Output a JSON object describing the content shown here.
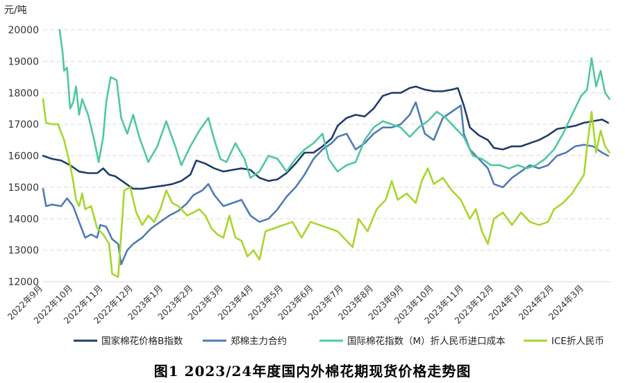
{
  "ylabel": "元/吨",
  "caption": "图1  2023/24年度国内外棉花期现货价格走势图",
  "chart_data": {
    "type": "line",
    "title": "图1  2023/24年度国内外棉花期现货价格走势图",
    "ylabel": "元/吨",
    "xlabel": "",
    "ylim": [
      12000,
      20000
    ],
    "yticks": [
      12000,
      13000,
      14000,
      15000,
      16000,
      17000,
      18000,
      19000,
      20000
    ],
    "grid": "horizontal dashed",
    "legend_position": "bottom",
    "x_tick_labels": [
      "2022年9月",
      "2022年10月",
      "2022年11月",
      "2022年12月",
      "2023年1月",
      "2023年2月",
      "2023年3月",
      "2023年4月",
      "2023年5月",
      "2023年6月",
      "2023年7月",
      "2023年8月",
      "2023年9月",
      "2023年10月",
      "2023年11月",
      "2023年12月",
      "2024年1月",
      "2024年2月",
      "2024年3月"
    ],
    "x_range_months": [
      0,
      18.9
    ],
    "series": [
      {
        "name": "国家棉花价格B指数",
        "color": "#1f3d6b",
        "points": [
          [
            0,
            16000
          ],
          [
            0.3,
            15900
          ],
          [
            0.6,
            15850
          ],
          [
            0.9,
            15700
          ],
          [
            1.2,
            15500
          ],
          [
            1.5,
            15450
          ],
          [
            1.8,
            15450
          ],
          [
            2.0,
            15600
          ],
          [
            2.2,
            15400
          ],
          [
            2.4,
            15350
          ],
          [
            2.7,
            15150
          ],
          [
            3.0,
            14950
          ],
          [
            3.3,
            14950
          ],
          [
            3.6,
            15000
          ],
          [
            4.0,
            15050
          ],
          [
            4.3,
            15100
          ],
          [
            4.6,
            15200
          ],
          [
            4.9,
            15400
          ],
          [
            5.1,
            15850
          ],
          [
            5.4,
            15750
          ],
          [
            5.7,
            15600
          ],
          [
            6.0,
            15500
          ],
          [
            6.3,
            15550
          ],
          [
            6.6,
            15600
          ],
          [
            6.9,
            15550
          ],
          [
            7.2,
            15300
          ],
          [
            7.5,
            15200
          ],
          [
            7.8,
            15250
          ],
          [
            8.1,
            15450
          ],
          [
            8.4,
            15750
          ],
          [
            8.7,
            16100
          ],
          [
            9.0,
            16100
          ],
          [
            9.3,
            16300
          ],
          [
            9.6,
            16550
          ],
          [
            9.8,
            16950
          ],
          [
            10.1,
            17200
          ],
          [
            10.4,
            17300
          ],
          [
            10.7,
            17250
          ],
          [
            11.0,
            17500
          ],
          [
            11.3,
            17900
          ],
          [
            11.6,
            18000
          ],
          [
            11.9,
            18000
          ],
          [
            12.2,
            18150
          ],
          [
            12.4,
            18200
          ],
          [
            12.7,
            18100
          ],
          [
            13.0,
            18050
          ],
          [
            13.3,
            18050
          ],
          [
            13.6,
            18100
          ],
          [
            13.8,
            18150
          ],
          [
            14.0,
            17600
          ],
          [
            14.2,
            16900
          ],
          [
            14.5,
            16650
          ],
          [
            14.8,
            16500
          ],
          [
            15.0,
            16250
          ],
          [
            15.3,
            16200
          ],
          [
            15.6,
            16300
          ],
          [
            15.9,
            16300
          ],
          [
            16.2,
            16400
          ],
          [
            16.5,
            16500
          ],
          [
            16.8,
            16650
          ],
          [
            17.1,
            16850
          ],
          [
            17.4,
            16900
          ],
          [
            17.7,
            16950
          ],
          [
            18.0,
            17050
          ],
          [
            18.3,
            17100
          ],
          [
            18.6,
            17150
          ],
          [
            18.8,
            17050
          ]
        ]
      },
      {
        "name": "郑棉主力合约",
        "color": "#4e7bb5",
        "points": [
          [
            0,
            14950
          ],
          [
            0.1,
            14400
          ],
          [
            0.3,
            14450
          ],
          [
            0.6,
            14400
          ],
          [
            0.8,
            14650
          ],
          [
            1.0,
            14400
          ],
          [
            1.2,
            13900
          ],
          [
            1.4,
            13400
          ],
          [
            1.6,
            13500
          ],
          [
            1.8,
            13400
          ],
          [
            1.9,
            13800
          ],
          [
            2.1,
            13750
          ],
          [
            2.3,
            13350
          ],
          [
            2.5,
            13200
          ],
          [
            2.6,
            12550
          ],
          [
            2.8,
            13000
          ],
          [
            3.0,
            13200
          ],
          [
            3.3,
            13400
          ],
          [
            3.6,
            13700
          ],
          [
            3.9,
            13900
          ],
          [
            4.2,
            14100
          ],
          [
            4.5,
            14250
          ],
          [
            4.8,
            14500
          ],
          [
            5.0,
            14750
          ],
          [
            5.3,
            14900
          ],
          [
            5.5,
            15100
          ],
          [
            5.7,
            14750
          ],
          [
            6.0,
            14400
          ],
          [
            6.3,
            14500
          ],
          [
            6.6,
            14600
          ],
          [
            6.9,
            14100
          ],
          [
            7.2,
            13900
          ],
          [
            7.5,
            14000
          ],
          [
            7.8,
            14300
          ],
          [
            8.1,
            14700
          ],
          [
            8.4,
            15000
          ],
          [
            8.7,
            15400
          ],
          [
            9.0,
            15900
          ],
          [
            9.3,
            16200
          ],
          [
            9.6,
            16400
          ],
          [
            9.8,
            16600
          ],
          [
            10.1,
            16700
          ],
          [
            10.4,
            16200
          ],
          [
            10.7,
            16400
          ],
          [
            11.0,
            16700
          ],
          [
            11.3,
            16900
          ],
          [
            11.6,
            16900
          ],
          [
            11.9,
            17000
          ],
          [
            12.2,
            17300
          ],
          [
            12.4,
            17700
          ],
          [
            12.7,
            16700
          ],
          [
            13.0,
            16500
          ],
          [
            13.3,
            17200
          ],
          [
            13.6,
            17400
          ],
          [
            13.9,
            17600
          ],
          [
            14.0,
            16700
          ],
          [
            14.2,
            16200
          ],
          [
            14.5,
            15900
          ],
          [
            14.8,
            15600
          ],
          [
            15.0,
            15100
          ],
          [
            15.3,
            15000
          ],
          [
            15.6,
            15300
          ],
          [
            15.9,
            15500
          ],
          [
            16.2,
            15700
          ],
          [
            16.5,
            15600
          ],
          [
            16.8,
            15700
          ],
          [
            17.1,
            16000
          ],
          [
            17.4,
            16100
          ],
          [
            17.7,
            16300
          ],
          [
            18.0,
            16350
          ],
          [
            18.3,
            16300
          ],
          [
            18.6,
            16100
          ],
          [
            18.8,
            16000
          ]
        ]
      },
      {
        "name": "国际棉花指数（M）折人民币进口成本",
        "color": "#4fc7a0",
        "points": [
          [
            0.55,
            20000
          ],
          [
            0.65,
            19300
          ],
          [
            0.7,
            18700
          ],
          [
            0.8,
            18800
          ],
          [
            0.9,
            17500
          ],
          [
            1.0,
            17700
          ],
          [
            1.1,
            18200
          ],
          [
            1.2,
            17300
          ],
          [
            1.3,
            17800
          ],
          [
            1.5,
            17300
          ],
          [
            1.7,
            16500
          ],
          [
            1.85,
            15800
          ],
          [
            2.0,
            16600
          ],
          [
            2.1,
            17700
          ],
          [
            2.25,
            18500
          ],
          [
            2.45,
            18400
          ],
          [
            2.6,
            17200
          ],
          [
            2.8,
            16700
          ],
          [
            3.0,
            17300
          ],
          [
            3.2,
            16600
          ],
          [
            3.5,
            15800
          ],
          [
            3.8,
            16300
          ],
          [
            4.1,
            17100
          ],
          [
            4.4,
            16300
          ],
          [
            4.6,
            15700
          ],
          [
            4.9,
            16300
          ],
          [
            5.2,
            16800
          ],
          [
            5.5,
            17200
          ],
          [
            5.7,
            16500
          ],
          [
            5.9,
            15900
          ],
          [
            6.1,
            15800
          ],
          [
            6.4,
            16400
          ],
          [
            6.7,
            15900
          ],
          [
            6.9,
            15300
          ],
          [
            7.2,
            15500
          ],
          [
            7.5,
            16000
          ],
          [
            7.8,
            15900
          ],
          [
            8.1,
            15500
          ],
          [
            8.4,
            15900
          ],
          [
            8.7,
            16200
          ],
          [
            9.0,
            16400
          ],
          [
            9.3,
            16700
          ],
          [
            9.5,
            15900
          ],
          [
            9.8,
            15500
          ],
          [
            10.1,
            15700
          ],
          [
            10.4,
            15800
          ],
          [
            10.7,
            16500
          ],
          [
            11.0,
            16900
          ],
          [
            11.3,
            17100
          ],
          [
            11.6,
            17000
          ],
          [
            11.9,
            16900
          ],
          [
            12.2,
            16600
          ],
          [
            12.5,
            16900
          ],
          [
            12.8,
            17100
          ],
          [
            13.1,
            17400
          ],
          [
            13.4,
            17200
          ],
          [
            13.7,
            16900
          ],
          [
            14.0,
            16600
          ],
          [
            14.3,
            16000
          ],
          [
            14.6,
            15900
          ],
          [
            14.9,
            15700
          ],
          [
            15.2,
            15700
          ],
          [
            15.5,
            15600
          ],
          [
            15.8,
            15700
          ],
          [
            16.1,
            15600
          ],
          [
            16.4,
            15700
          ],
          [
            16.7,
            15900
          ],
          [
            17.0,
            16200
          ],
          [
            17.3,
            16700
          ],
          [
            17.6,
            17300
          ],
          [
            17.9,
            17900
          ],
          [
            18.1,
            18100
          ],
          [
            18.25,
            19100
          ],
          [
            18.4,
            18200
          ],
          [
            18.55,
            18700
          ],
          [
            18.7,
            18000
          ],
          [
            18.85,
            17800
          ]
        ]
      },
      {
        "name": "ICE折人民币",
        "color": "#a8d62a",
        "points": [
          [
            0,
            17800
          ],
          [
            0.1,
            17050
          ],
          [
            0.3,
            17000
          ],
          [
            0.5,
            17000
          ],
          [
            0.7,
            16500
          ],
          [
            0.9,
            15700
          ],
          [
            1.0,
            15200
          ],
          [
            1.1,
            14600
          ],
          [
            1.2,
            14400
          ],
          [
            1.3,
            14800
          ],
          [
            1.4,
            14300
          ],
          [
            1.6,
            14400
          ],
          [
            1.8,
            13700
          ],
          [
            2.0,
            13500
          ],
          [
            2.2,
            13200
          ],
          [
            2.3,
            12250
          ],
          [
            2.5,
            12150
          ],
          [
            2.7,
            14900
          ],
          [
            2.9,
            15000
          ],
          [
            3.1,
            14200
          ],
          [
            3.3,
            13800
          ],
          [
            3.5,
            14100
          ],
          [
            3.7,
            13900
          ],
          [
            3.9,
            14300
          ],
          [
            4.1,
            14900
          ],
          [
            4.3,
            14500
          ],
          [
            4.5,
            14400
          ],
          [
            4.8,
            14100
          ],
          [
            5.0,
            14200
          ],
          [
            5.2,
            14300
          ],
          [
            5.4,
            14100
          ],
          [
            5.6,
            13700
          ],
          [
            5.8,
            13500
          ],
          [
            6.0,
            13400
          ],
          [
            6.2,
            14100
          ],
          [
            6.4,
            13400
          ],
          [
            6.6,
            13300
          ],
          [
            6.8,
            12800
          ],
          [
            7.0,
            13000
          ],
          [
            7.2,
            12700
          ],
          [
            7.4,
            13600
          ],
          [
            7.7,
            13700
          ],
          [
            8.0,
            13800
          ],
          [
            8.3,
            13900
          ],
          [
            8.6,
            13400
          ],
          [
            8.9,
            13900
          ],
          [
            9.2,
            13800
          ],
          [
            9.5,
            13700
          ],
          [
            9.8,
            13600
          ],
          [
            10.1,
            13300
          ],
          [
            10.3,
            13100
          ],
          [
            10.5,
            14000
          ],
          [
            10.8,
            13600
          ],
          [
            11.1,
            14300
          ],
          [
            11.4,
            14600
          ],
          [
            11.6,
            15200
          ],
          [
            11.8,
            14600
          ],
          [
            12.1,
            14800
          ],
          [
            12.4,
            14500
          ],
          [
            12.6,
            15200
          ],
          [
            12.8,
            15600
          ],
          [
            13.0,
            15100
          ],
          [
            13.3,
            15300
          ],
          [
            13.6,
            14900
          ],
          [
            13.9,
            14600
          ],
          [
            14.2,
            14000
          ],
          [
            14.4,
            14300
          ],
          [
            14.6,
            13600
          ],
          [
            14.8,
            13200
          ],
          [
            15.0,
            14000
          ],
          [
            15.3,
            14200
          ],
          [
            15.6,
            13800
          ],
          [
            15.9,
            14200
          ],
          [
            16.2,
            13900
          ],
          [
            16.5,
            13800
          ],
          [
            16.8,
            13900
          ],
          [
            17.0,
            14300
          ],
          [
            17.3,
            14500
          ],
          [
            17.6,
            14800
          ],
          [
            17.8,
            15100
          ],
          [
            18.0,
            15400
          ],
          [
            18.1,
            16300
          ],
          [
            18.25,
            17400
          ],
          [
            18.4,
            16100
          ],
          [
            18.55,
            16800
          ],
          [
            18.7,
            16300
          ],
          [
            18.85,
            16100
          ]
        ]
      }
    ]
  }
}
